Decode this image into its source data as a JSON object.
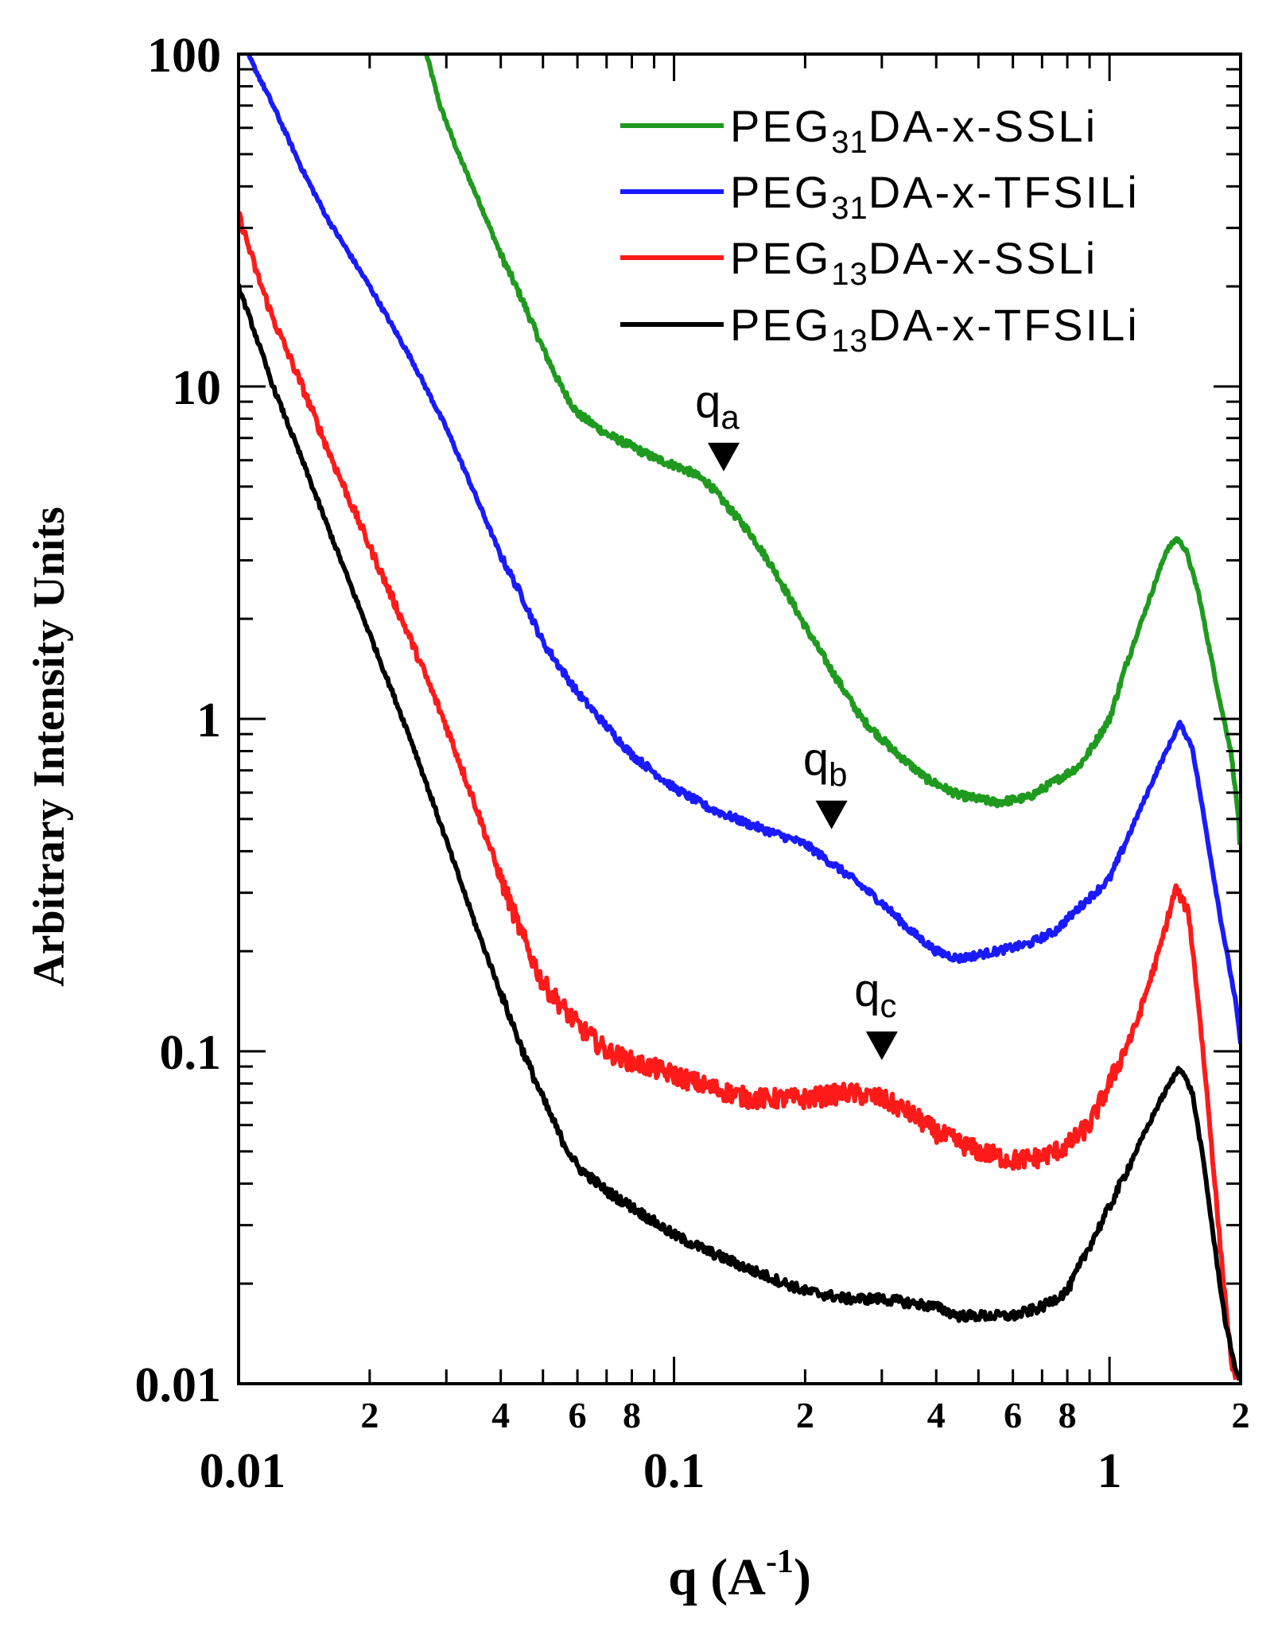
{
  "chart_data": {
    "type": "line",
    "title": "",
    "xlabel": "q (A",
    "xlabel_sup": "-1",
    "xlabel_close": ")",
    "ylabel": "Arbitrary Intensity Units",
    "xscale": "log",
    "yscale": "log",
    "xlim": [
      0.01,
      2.0
    ],
    "ylim": [
      0.01,
      100
    ],
    "x_major_ticks": [
      {
        "value": 0.01,
        "label": "0.01"
      },
      {
        "value": 0.1,
        "label": "0.1"
      },
      {
        "value": 1,
        "label": "1"
      }
    ],
    "x_minor_ticks": [
      {
        "value": 0.02,
        "label": "2"
      },
      {
        "value": 0.03,
        "label": ""
      },
      {
        "value": 0.04,
        "label": "4"
      },
      {
        "value": 0.05,
        "label": ""
      },
      {
        "value": 0.06,
        "label": "6"
      },
      {
        "value": 0.07,
        "label": ""
      },
      {
        "value": 0.08,
        "label": "8"
      },
      {
        "value": 0.09,
        "label": ""
      },
      {
        "value": 0.2,
        "label": "2"
      },
      {
        "value": 0.3,
        "label": ""
      },
      {
        "value": 0.4,
        "label": "4"
      },
      {
        "value": 0.5,
        "label": ""
      },
      {
        "value": 0.6,
        "label": "6"
      },
      {
        "value": 0.7,
        "label": ""
      },
      {
        "value": 0.8,
        "label": "8"
      },
      {
        "value": 0.9,
        "label": ""
      },
      {
        "value": 2.0,
        "label": "2"
      }
    ],
    "y_major_ticks": [
      {
        "value": 0.01,
        "label": "0.01"
      },
      {
        "value": 0.1,
        "label": "0.1"
      },
      {
        "value": 1,
        "label": "1"
      },
      {
        "value": 10,
        "label": "10"
      },
      {
        "value": 100,
        "label": "100"
      }
    ],
    "legend_position": "top-right",
    "series": [
      {
        "name": "PEG31DA-x-SSLi",
        "legend_label": {
          "prefix": "PEG",
          "sub": "31",
          "suffix": "DA-x-SSLi"
        },
        "color": "#1f9a1f",
        "noise": 0.012,
        "points": [
          [
            0.027,
            100
          ],
          [
            0.029,
            70
          ],
          [
            0.032,
            50
          ],
          [
            0.036,
            35
          ],
          [
            0.04,
            25
          ],
          [
            0.045,
            18
          ],
          [
            0.05,
            13
          ],
          [
            0.055,
            10
          ],
          [
            0.06,
            8.3
          ],
          [
            0.07,
            7.2
          ],
          [
            0.08,
            6.6
          ],
          [
            0.09,
            6.1
          ],
          [
            0.1,
            5.8
          ],
          [
            0.11,
            5.5
          ],
          [
            0.12,
            5.1
          ],
          [
            0.13,
            4.5
          ],
          [
            0.15,
            3.6
          ],
          [
            0.17,
            2.8
          ],
          [
            0.2,
            1.9
          ],
          [
            0.23,
            1.4
          ],
          [
            0.27,
            1.0
          ],
          [
            0.32,
            0.8
          ],
          [
            0.38,
            0.66
          ],
          [
            0.45,
            0.59
          ],
          [
            0.55,
            0.56
          ],
          [
            0.65,
            0.58
          ],
          [
            0.75,
            0.65
          ],
          [
            0.85,
            0.72
          ],
          [
            0.9,
            0.8
          ],
          [
            1.0,
            1.0
          ],
          [
            1.1,
            1.5
          ],
          [
            1.25,
            2.4
          ],
          [
            1.35,
            3.2
          ],
          [
            1.43,
            3.5
          ],
          [
            1.5,
            3.2
          ],
          [
            1.6,
            2.4
          ],
          [
            1.7,
            1.6
          ],
          [
            1.8,
            1.1
          ],
          [
            1.9,
            0.8
          ],
          [
            1.98,
            0.5
          ],
          [
            2.0,
            0.35
          ]
        ]
      },
      {
        "name": "PEG31DA-x-TFSILi",
        "legend_label": {
          "prefix": "PEG",
          "sub": "31",
          "suffix": "DA-x-TFSILi"
        },
        "color": "#1a1aff",
        "noise": 0.012,
        "points": [
          [
            0.0105,
            100
          ],
          [
            0.012,
            70
          ],
          [
            0.014,
            45
          ],
          [
            0.016,
            32
          ],
          [
            0.02,
            20
          ],
          [
            0.025,
            12
          ],
          [
            0.03,
            7.5
          ],
          [
            0.035,
            4.7
          ],
          [
            0.04,
            3.1
          ],
          [
            0.045,
            2.3
          ],
          [
            0.05,
            1.7
          ],
          [
            0.06,
            1.2
          ],
          [
            0.07,
            0.95
          ],
          [
            0.08,
            0.78
          ],
          [
            0.1,
            0.62
          ],
          [
            0.12,
            0.54
          ],
          [
            0.15,
            0.48
          ],
          [
            0.2,
            0.42
          ],
          [
            0.25,
            0.34
          ],
          [
            0.3,
            0.28
          ],
          [
            0.35,
            0.23
          ],
          [
            0.4,
            0.2
          ],
          [
            0.45,
            0.19
          ],
          [
            0.55,
            0.2
          ],
          [
            0.65,
            0.21
          ],
          [
            0.75,
            0.23
          ],
          [
            0.85,
            0.27
          ],
          [
            1.0,
            0.33
          ],
          [
            1.15,
            0.5
          ],
          [
            1.3,
            0.72
          ],
          [
            1.45,
            0.97
          ],
          [
            1.55,
            0.82
          ],
          [
            1.65,
            0.5
          ],
          [
            1.8,
            0.25
          ],
          [
            1.95,
            0.14
          ],
          [
            2.0,
            0.105
          ]
        ]
      },
      {
        "name": "PEG13DA-x-SSLi",
        "legend_label": {
          "prefix": "PEG",
          "sub": "13",
          "suffix": "DA-x-SSLi"
        },
        "color": "#ff1a1a",
        "noise": 0.03,
        "points": [
          [
            0.01,
            33
          ],
          [
            0.011,
            22
          ],
          [
            0.012,
            16
          ],
          [
            0.014,
            10
          ],
          [
            0.016,
            6.5
          ],
          [
            0.02,
            3.3
          ],
          [
            0.025,
            1.7
          ],
          [
            0.03,
            0.95
          ],
          [
            0.035,
            0.55
          ],
          [
            0.04,
            0.33
          ],
          [
            0.045,
            0.22
          ],
          [
            0.05,
            0.16
          ],
          [
            0.06,
            0.12
          ],
          [
            0.07,
            0.1
          ],
          [
            0.08,
            0.093
          ],
          [
            0.1,
            0.085
          ],
          [
            0.12,
            0.078
          ],
          [
            0.15,
            0.072
          ],
          [
            0.2,
            0.072
          ],
          [
            0.25,
            0.075
          ],
          [
            0.3,
            0.072
          ],
          [
            0.35,
            0.065
          ],
          [
            0.4,
            0.057
          ],
          [
            0.5,
            0.05
          ],
          [
            0.6,
            0.047
          ],
          [
            0.7,
            0.048
          ],
          [
            0.8,
            0.052
          ],
          [
            0.9,
            0.06
          ],
          [
            1.0,
            0.08
          ],
          [
            1.15,
            0.12
          ],
          [
            1.3,
            0.2
          ],
          [
            1.42,
            0.31
          ],
          [
            1.52,
            0.26
          ],
          [
            1.6,
            0.14
          ],
          [
            1.7,
            0.06
          ],
          [
            1.8,
            0.025
          ],
          [
            1.9,
            0.012
          ],
          [
            1.95,
            0.01
          ]
        ]
      },
      {
        "name": "PEG13DA-x-TFSILi",
        "legend_label": {
          "prefix": "PEG",
          "sub": "13",
          "suffix": "DA-x-TFSILi"
        },
        "color": "#000000",
        "noise": 0.015,
        "points": [
          [
            0.01,
            20
          ],
          [
            0.011,
            14
          ],
          [
            0.012,
            10
          ],
          [
            0.014,
            6
          ],
          [
            0.016,
            3.8
          ],
          [
            0.02,
            1.8
          ],
          [
            0.025,
            0.85
          ],
          [
            0.03,
            0.43
          ],
          [
            0.035,
            0.24
          ],
          [
            0.04,
            0.15
          ],
          [
            0.045,
            0.1
          ],
          [
            0.05,
            0.072
          ],
          [
            0.055,
            0.055
          ],
          [
            0.06,
            0.045
          ],
          [
            0.07,
            0.038
          ],
          [
            0.08,
            0.034
          ],
          [
            0.1,
            0.028
          ],
          [
            0.12,
            0.025
          ],
          [
            0.15,
            0.022
          ],
          [
            0.2,
            0.019
          ],
          [
            0.25,
            0.018
          ],
          [
            0.3,
            0.018
          ],
          [
            0.35,
            0.0175
          ],
          [
            0.4,
            0.017
          ],
          [
            0.45,
            0.016
          ],
          [
            0.5,
            0.016
          ],
          [
            0.6,
            0.016
          ],
          [
            0.7,
            0.017
          ],
          [
            0.8,
            0.019
          ],
          [
            0.9,
            0.026
          ],
          [
            1.0,
            0.034
          ],
          [
            1.15,
            0.05
          ],
          [
            1.3,
            0.07
          ],
          [
            1.45,
            0.09
          ],
          [
            1.55,
            0.075
          ],
          [
            1.65,
            0.045
          ],
          [
            1.75,
            0.025
          ],
          [
            1.85,
            0.015
          ],
          [
            1.95,
            0.011
          ],
          [
            2.0,
            0.01
          ]
        ]
      }
    ],
    "markers": [
      {
        "name": "qa",
        "label_main": "q",
        "label_sub": "a",
        "q": 0.13,
        "y": 6.2
      },
      {
        "name": "qb",
        "label_main": "q",
        "label_sub": "b",
        "q": 0.23,
        "y": 0.52
      },
      {
        "name": "qc",
        "label_main": "q",
        "label_sub": "c",
        "q": 0.3,
        "y": 0.105
      }
    ]
  }
}
